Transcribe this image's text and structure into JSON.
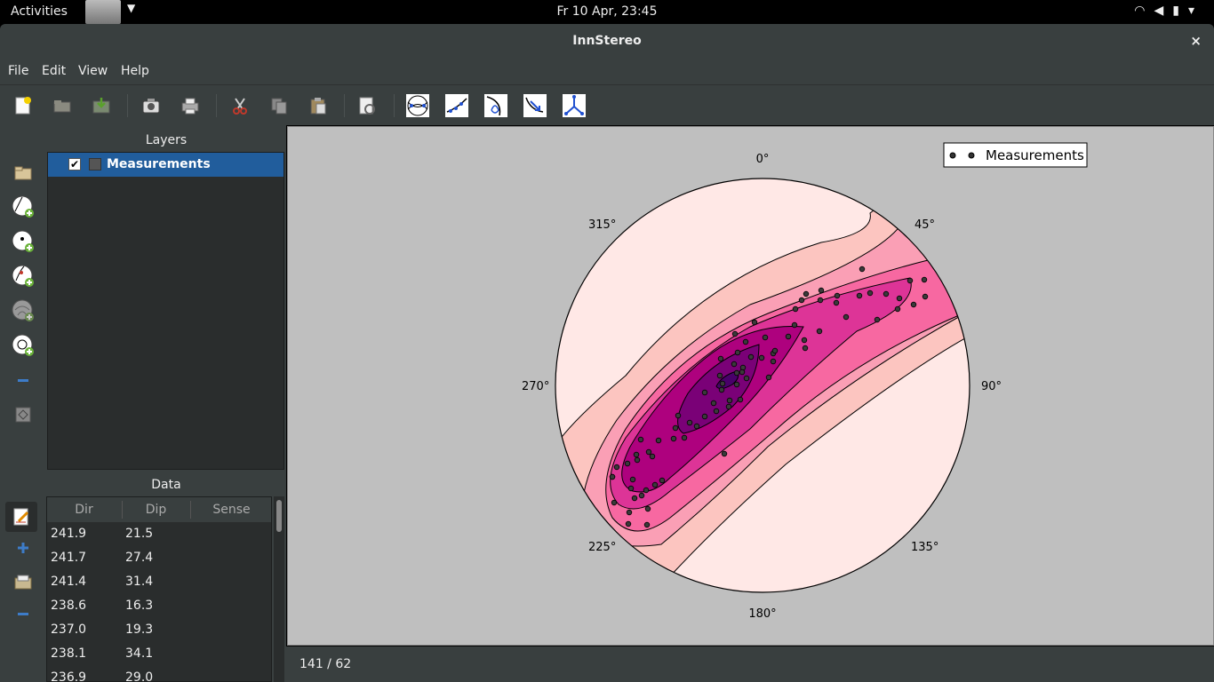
{
  "system": {
    "activities": "Activities",
    "clock": "Fr 10 Apr, 23:45"
  },
  "window": {
    "title": "InnStereo",
    "close": "×"
  },
  "menu": [
    "File",
    "Edit",
    "View",
    "Help"
  ],
  "layers": {
    "header": "Layers",
    "items": [
      {
        "label": "Measurements",
        "checked": true
      }
    ]
  },
  "data_panel": {
    "header": "Data",
    "columns": [
      "Dir",
      "Dip",
      "Sense"
    ],
    "rows": [
      [
        "241.9",
        "21.5",
        ""
      ],
      [
        "241.7",
        "27.4",
        ""
      ],
      [
        "241.4",
        "31.4",
        ""
      ],
      [
        "238.6",
        "16.3",
        ""
      ],
      [
        "237.0",
        "19.3",
        ""
      ],
      [
        "238.1",
        "34.1",
        ""
      ],
      [
        "236.9",
        "29.0",
        ""
      ]
    ]
  },
  "plot": {
    "legend": "Measurements",
    "directions": [
      "0°",
      "45°",
      "90°",
      "135°",
      "180°",
      "225°",
      "270°",
      "315°"
    ],
    "contour_colors": [
      "#ffe8e6",
      "#fcc5c0",
      "#fa9fb5",
      "#f768a1",
      "#dd3497",
      "#ae017e",
      "#7a0177",
      "#49006a"
    ]
  },
  "status": {
    "coords": "141 / 62"
  }
}
